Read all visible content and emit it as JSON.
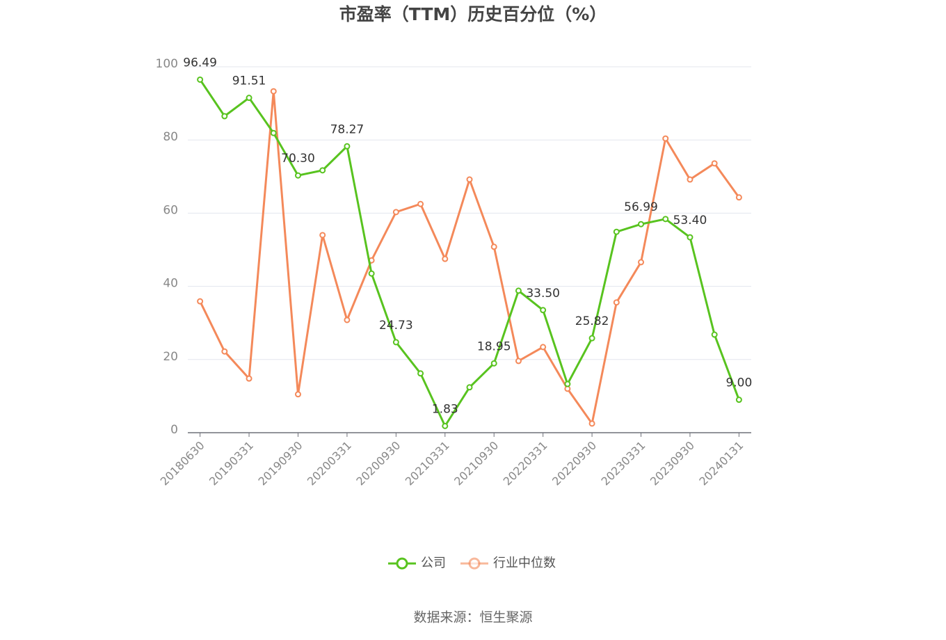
{
  "chart_data": {
    "type": "line",
    "title": "市盈率（TTM）历史百分位（%）",
    "categories": [
      "20180630",
      null,
      "20190331",
      null,
      "20190930",
      null,
      "20200331",
      null,
      "20200930",
      null,
      "20210331",
      null,
      "20210930",
      null,
      "20220331",
      null,
      "20220930",
      null,
      "20230331",
      null,
      "20230930",
      null,
      "20240131"
    ],
    "series": [
      {
        "name": "公司",
        "color": "#58c31f",
        "values": [
          96.49,
          86.5,
          91.51,
          81.9,
          70.3,
          71.7,
          78.27,
          43.5,
          24.73,
          16.2,
          1.83,
          12.4,
          18.95,
          38.8,
          33.5,
          13.3,
          25.82,
          54.9,
          56.99,
          58.4,
          53.4,
          26.8,
          9.0
        ],
        "value_labels": [
          "96.49",
          null,
          "91.51",
          null,
          "70.30",
          null,
          "78.27",
          null,
          "24.73",
          null,
          "1.83",
          null,
          "18.95",
          null,
          "33.50",
          null,
          "25.82",
          null,
          "56.99",
          null,
          "53.40",
          null,
          "9.00"
        ]
      },
      {
        "name": "行业中位数",
        "color": "#f4895a",
        "values": [
          35.9,
          22.2,
          14.8,
          93.3,
          10.5,
          54.0,
          30.8,
          47.1,
          60.3,
          62.5,
          47.5,
          69.2,
          50.8,
          19.6,
          23.4,
          12.0,
          2.5,
          35.6,
          46.6,
          80.4,
          69.2,
          73.6,
          64.3
        ]
      }
    ],
    "ylim": [
      0,
      100
    ],
    "yticks": [
      0,
      20,
      40,
      60,
      80,
      100
    ],
    "grid": true,
    "legend": "bottom",
    "source": "数据来源：恒生聚源"
  }
}
